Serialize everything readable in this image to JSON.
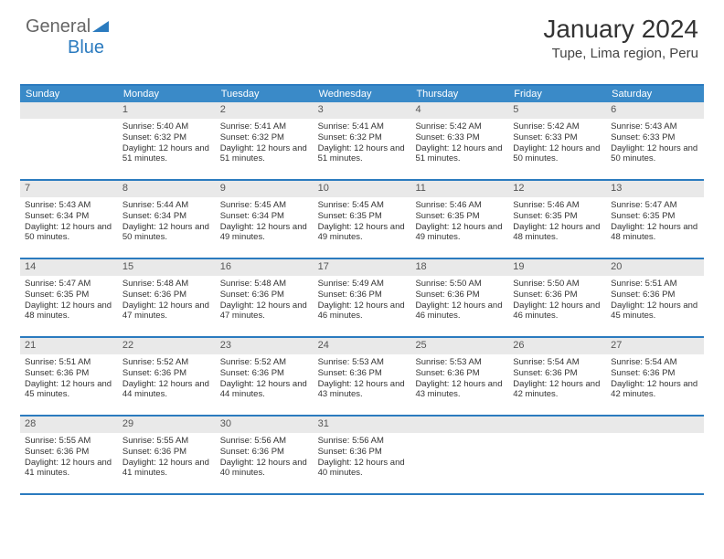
{
  "logo": {
    "part1": "General",
    "part2": "Blue"
  },
  "title": "January 2024",
  "location": "Tupe, Lima region, Peru",
  "day_headers": [
    "Sunday",
    "Monday",
    "Tuesday",
    "Wednesday",
    "Thursday",
    "Friday",
    "Saturday"
  ],
  "colors": {
    "header_bg": "#3a8ac8",
    "border": "#2b7bbf",
    "daynum_bg": "#e9e9e9"
  },
  "weeks": [
    [
      {
        "day": "",
        "empty": true
      },
      {
        "day": "1",
        "sunrise": "Sunrise: 5:40 AM",
        "sunset": "Sunset: 6:32 PM",
        "daylight": "Daylight: 12 hours and 51 minutes."
      },
      {
        "day": "2",
        "sunrise": "Sunrise: 5:41 AM",
        "sunset": "Sunset: 6:32 PM",
        "daylight": "Daylight: 12 hours and 51 minutes."
      },
      {
        "day": "3",
        "sunrise": "Sunrise: 5:41 AM",
        "sunset": "Sunset: 6:32 PM",
        "daylight": "Daylight: 12 hours and 51 minutes."
      },
      {
        "day": "4",
        "sunrise": "Sunrise: 5:42 AM",
        "sunset": "Sunset: 6:33 PM",
        "daylight": "Daylight: 12 hours and 51 minutes."
      },
      {
        "day": "5",
        "sunrise": "Sunrise: 5:42 AM",
        "sunset": "Sunset: 6:33 PM",
        "daylight": "Daylight: 12 hours and 50 minutes."
      },
      {
        "day": "6",
        "sunrise": "Sunrise: 5:43 AM",
        "sunset": "Sunset: 6:33 PM",
        "daylight": "Daylight: 12 hours and 50 minutes."
      }
    ],
    [
      {
        "day": "7",
        "sunrise": "Sunrise: 5:43 AM",
        "sunset": "Sunset: 6:34 PM",
        "daylight": "Daylight: 12 hours and 50 minutes."
      },
      {
        "day": "8",
        "sunrise": "Sunrise: 5:44 AM",
        "sunset": "Sunset: 6:34 PM",
        "daylight": "Daylight: 12 hours and 50 minutes."
      },
      {
        "day": "9",
        "sunrise": "Sunrise: 5:45 AM",
        "sunset": "Sunset: 6:34 PM",
        "daylight": "Daylight: 12 hours and 49 minutes."
      },
      {
        "day": "10",
        "sunrise": "Sunrise: 5:45 AM",
        "sunset": "Sunset: 6:35 PM",
        "daylight": "Daylight: 12 hours and 49 minutes."
      },
      {
        "day": "11",
        "sunrise": "Sunrise: 5:46 AM",
        "sunset": "Sunset: 6:35 PM",
        "daylight": "Daylight: 12 hours and 49 minutes."
      },
      {
        "day": "12",
        "sunrise": "Sunrise: 5:46 AM",
        "sunset": "Sunset: 6:35 PM",
        "daylight": "Daylight: 12 hours and 48 minutes."
      },
      {
        "day": "13",
        "sunrise": "Sunrise: 5:47 AM",
        "sunset": "Sunset: 6:35 PM",
        "daylight": "Daylight: 12 hours and 48 minutes."
      }
    ],
    [
      {
        "day": "14",
        "sunrise": "Sunrise: 5:47 AM",
        "sunset": "Sunset: 6:35 PM",
        "daylight": "Daylight: 12 hours and 48 minutes."
      },
      {
        "day": "15",
        "sunrise": "Sunrise: 5:48 AM",
        "sunset": "Sunset: 6:36 PM",
        "daylight": "Daylight: 12 hours and 47 minutes."
      },
      {
        "day": "16",
        "sunrise": "Sunrise: 5:48 AM",
        "sunset": "Sunset: 6:36 PM",
        "daylight": "Daylight: 12 hours and 47 minutes."
      },
      {
        "day": "17",
        "sunrise": "Sunrise: 5:49 AM",
        "sunset": "Sunset: 6:36 PM",
        "daylight": "Daylight: 12 hours and 46 minutes."
      },
      {
        "day": "18",
        "sunrise": "Sunrise: 5:50 AM",
        "sunset": "Sunset: 6:36 PM",
        "daylight": "Daylight: 12 hours and 46 minutes."
      },
      {
        "day": "19",
        "sunrise": "Sunrise: 5:50 AM",
        "sunset": "Sunset: 6:36 PM",
        "daylight": "Daylight: 12 hours and 46 minutes."
      },
      {
        "day": "20",
        "sunrise": "Sunrise: 5:51 AM",
        "sunset": "Sunset: 6:36 PM",
        "daylight": "Daylight: 12 hours and 45 minutes."
      }
    ],
    [
      {
        "day": "21",
        "sunrise": "Sunrise: 5:51 AM",
        "sunset": "Sunset: 6:36 PM",
        "daylight": "Daylight: 12 hours and 45 minutes."
      },
      {
        "day": "22",
        "sunrise": "Sunrise: 5:52 AM",
        "sunset": "Sunset: 6:36 PM",
        "daylight": "Daylight: 12 hours and 44 minutes."
      },
      {
        "day": "23",
        "sunrise": "Sunrise: 5:52 AM",
        "sunset": "Sunset: 6:36 PM",
        "daylight": "Daylight: 12 hours and 44 minutes."
      },
      {
        "day": "24",
        "sunrise": "Sunrise: 5:53 AM",
        "sunset": "Sunset: 6:36 PM",
        "daylight": "Daylight: 12 hours and 43 minutes."
      },
      {
        "day": "25",
        "sunrise": "Sunrise: 5:53 AM",
        "sunset": "Sunset: 6:36 PM",
        "daylight": "Daylight: 12 hours and 43 minutes."
      },
      {
        "day": "26",
        "sunrise": "Sunrise: 5:54 AM",
        "sunset": "Sunset: 6:36 PM",
        "daylight": "Daylight: 12 hours and 42 minutes."
      },
      {
        "day": "27",
        "sunrise": "Sunrise: 5:54 AM",
        "sunset": "Sunset: 6:36 PM",
        "daylight": "Daylight: 12 hours and 42 minutes."
      }
    ],
    [
      {
        "day": "28",
        "sunrise": "Sunrise: 5:55 AM",
        "sunset": "Sunset: 6:36 PM",
        "daylight": "Daylight: 12 hours and 41 minutes."
      },
      {
        "day": "29",
        "sunrise": "Sunrise: 5:55 AM",
        "sunset": "Sunset: 6:36 PM",
        "daylight": "Daylight: 12 hours and 41 minutes."
      },
      {
        "day": "30",
        "sunrise": "Sunrise: 5:56 AM",
        "sunset": "Sunset: 6:36 PM",
        "daylight": "Daylight: 12 hours and 40 minutes."
      },
      {
        "day": "31",
        "sunrise": "Sunrise: 5:56 AM",
        "sunset": "Sunset: 6:36 PM",
        "daylight": "Daylight: 12 hours and 40 minutes."
      },
      {
        "day": "",
        "empty": true
      },
      {
        "day": "",
        "empty": true
      },
      {
        "day": "",
        "empty": true
      }
    ]
  ]
}
